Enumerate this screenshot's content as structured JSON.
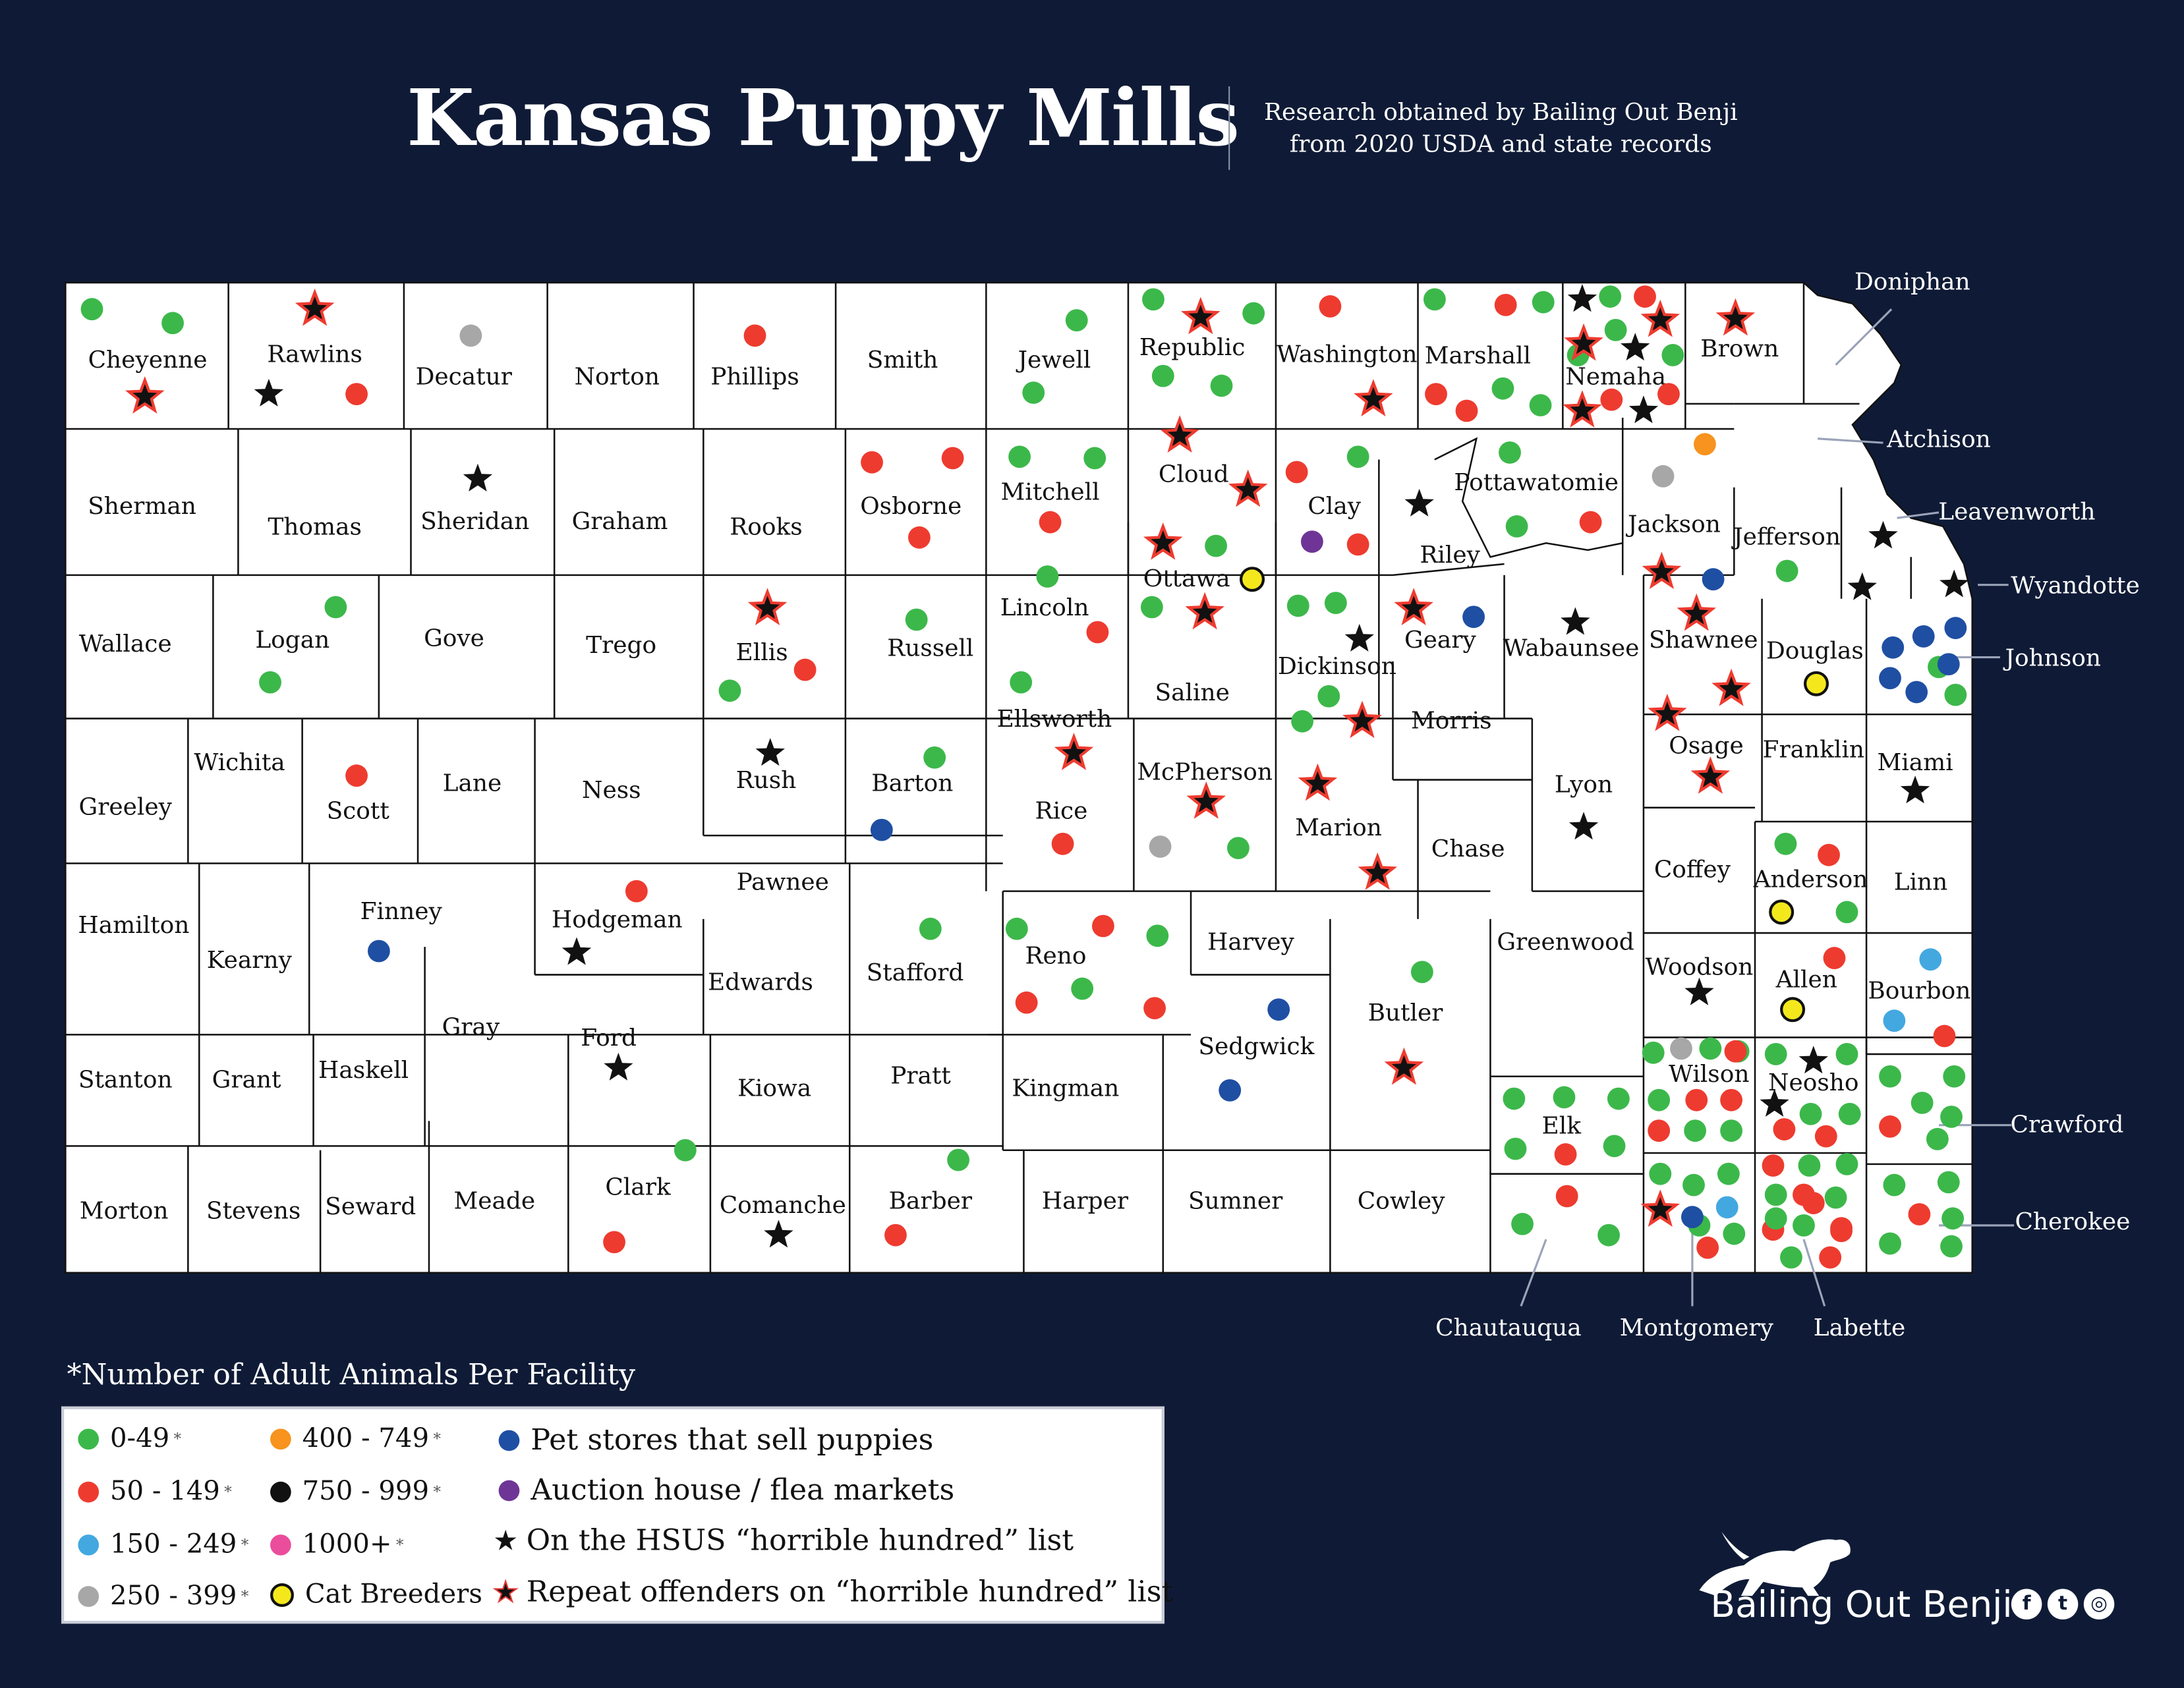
{
  "title": "Kansas Puppy Mills",
  "research_line1": "Research obtained by Bailing Out Benji",
  "research_line2": "from 2020 USDA and state records",
  "legend_title": "Number of Adult Animals Per Facility",
  "legend_title_mark": "*",
  "legend": {
    "size_0_49": "0-49",
    "size_50_149": "50 - 149",
    "size_150_249": "150 - 249",
    "size_250_399": "250 - 399",
    "size_400_749": "400 - 749",
    "size_750_999": "750 - 999",
    "size_1000": "1000+",
    "cat_breeders": "Cat Breeders",
    "pet_stores": "Pet stores that sell puppies",
    "auction": "Auction house / flea markets",
    "hsus": "On the HSUS “horrible hundred” list",
    "repeat": "Repeat offenders on “horrible hundred” list",
    "asterisk": "*"
  },
  "colors": {
    "background": "#0f1b36",
    "green": "#3cb84a",
    "red": "#ee3b2f",
    "light_blue": "#43a8e0",
    "gray": "#a7a7a7",
    "orange": "#f7931e",
    "black": "#111111",
    "pink": "#ea4d9b",
    "yellow": "#f4e81d",
    "navy": "#1f4fa3",
    "purple": "#6e3596"
  },
  "brand": "Bailing Out Benji",
  "social_icons": [
    "facebook-icon",
    "twitter-icon",
    "instagram-icon"
  ],
  "counties": [
    "Cheyenne",
    "Rawlins",
    "Decatur",
    "Norton",
    "Phillips",
    "Smith",
    "Jewell",
    "Republic",
    "Washington",
    "Marshall",
    "Nemaha",
    "Brown",
    "Sherman",
    "Thomas",
    "Sheridan",
    "Graham",
    "Rooks",
    "Osborne",
    "Mitchell",
    "Cloud",
    "Clay",
    "Riley",
    "Pottawatomie",
    "Jackson",
    "Jefferson",
    "Wallace",
    "Logan",
    "Gove",
    "Trego",
    "Ellis",
    "Russell",
    "Lincoln",
    "Ottawa",
    "Dickinson",
    "Geary",
    "Wabaunsee",
    "Shawnee",
    "Douglas",
    "Ellsworth",
    "Saline",
    "Morris",
    "Greeley",
    "Wichita",
    "Scott",
    "Lane",
    "Ness",
    "Rush",
    "Barton",
    "Rice",
    "McPherson",
    "Marion",
    "Chase",
    "Lyon",
    "Osage",
    "Franklin",
    "Miami",
    "Hamilton",
    "Kearny",
    "Finney",
    "Hodgeman",
    "Pawnee",
    "Edwards",
    "Stafford",
    "Reno",
    "Harvey",
    "Coffey",
    "Anderson",
    "Linn",
    "Gray",
    "Ford",
    "Greenwood",
    "Woodson",
    "Allen",
    "Bourbon",
    "Sedgwick",
    "Butler",
    "Stanton",
    "Grant",
    "Haskell",
    "Kiowa",
    "Pratt",
    "Kingman",
    "Wilson",
    "Neosho",
    "Crawford",
    "Morton",
    "Stevens",
    "Seward",
    "Meade",
    "Clark",
    "Comanche",
    "Barber",
    "Harper",
    "Sumner",
    "Cowley",
    "Elk",
    "Chautauqua",
    "Montgomery",
    "Labette",
    "Cherokee",
    "Doniphan",
    "Atchison",
    "Leavenworth",
    "Wyandotte",
    "Johnson"
  ],
  "markers": {
    "Cheyenne": [
      "green",
      "green",
      "repeat"
    ],
    "Rawlins": [
      "repeat",
      "hsus",
      "red"
    ],
    "Decatur": [
      "gray"
    ],
    "Phillips": [
      "red"
    ],
    "Jewell": [
      "green",
      "green"
    ],
    "Republic": [
      "green",
      "repeat",
      "green",
      "green",
      "green"
    ],
    "Washington": [
      "red",
      "repeat"
    ],
    "Marshall": [
      "green",
      "red",
      "green",
      "red",
      "green",
      "red",
      "green",
      "green"
    ],
    "Nemaha": [
      "hsus",
      "green",
      "red",
      "repeat",
      "repeat",
      "green",
      "hsus",
      "green",
      "repeat",
      "red",
      "hsus",
      "red"
    ],
    "Brown": [
      "repeat"
    ],
    "Sheridan": [
      "hsus"
    ],
    "Osborne": [
      "red",
      "red",
      "red"
    ],
    "Mitchell": [
      "green",
      "green",
      "red"
    ],
    "Cloud": [
      "repeat",
      "repeat"
    ],
    "Clay": [
      "red",
      "green",
      "purple",
      "red"
    ],
    "Riley": [
      "hsus"
    ],
    "Pottawatomie": [
      "green",
      "green",
      "red"
    ],
    "Jackson": [
      "orange",
      "gray",
      "repeat",
      "navy"
    ],
    "Jefferson": [
      "green"
    ],
    "Logan": [
      "green",
      "green"
    ],
    "Ellis": [
      "repeat",
      "green",
      "red"
    ],
    "Russell": [
      "green"
    ],
    "Lincoln": [
      "green",
      "red"
    ],
    "Ottawa": [
      "repeat",
      "green",
      "yellow",
      "green",
      "repeat"
    ],
    "Dickinson": [
      "green",
      "green",
      "hsus",
      "green",
      "green",
      "repeat"
    ],
    "Geary": [
      "repeat",
      "navy"
    ],
    "Wabaunsee": [
      "hsus"
    ],
    "Shawnee": [
      "repeat"
    ],
    "Douglas": [
      "yellow"
    ],
    "Ellsworth": [
      "green",
      "repeat"
    ],
    "Scott": [
      "red"
    ],
    "Rush": [
      "hsus"
    ],
    "Barton": [
      "green",
      "navy"
    ],
    "Rice": [
      "red"
    ],
    "McPherson": [
      "repeat",
      "gray",
      "green"
    ],
    "Marion": [
      "repeat",
      "repeat"
    ],
    "Lyon": [
      "hsus"
    ],
    "Osage": [
      "repeat",
      "repeat",
      "repeat"
    ],
    "Miami": [
      "hsus"
    ],
    "Finney": [
      "navy"
    ],
    "Hodgeman": [
      "red",
      "hsus"
    ],
    "Stafford": [
      "green"
    ],
    "Reno": [
      "green",
      "red",
      "green",
      "red",
      "green",
      "red"
    ],
    "Anderson": [
      "green",
      "red",
      "yellow",
      "green"
    ],
    "Ford": [
      "hsus"
    ],
    "Woodson": [
      "hsus"
    ],
    "Allen": [
      "red",
      "yellow"
    ],
    "Bourbon": [
      "light_blue",
      "light_blue",
      "red"
    ],
    "Sedgwick": [
      "navy",
      "navy"
    ],
    "Butler": [
      "green",
      "repeat"
    ],
    "Wilson": [
      "green",
      "gray",
      "green",
      "green",
      "red",
      "green",
      "red",
      "red",
      "green",
      "green",
      "red"
    ],
    "Neosho": [
      "green",
      "hsus",
      "green",
      "hsus",
      "green",
      "red",
      "green",
      "red"
    ],
    "Crawford": [
      "green",
      "green",
      "green",
      "red",
      "green",
      "green"
    ],
    "Clark": [
      "green",
      "red"
    ],
    "Comanche": [
      "hsus"
    ],
    "Barber": [
      "green",
      "red"
    ],
    "Elk": [
      "green",
      "green",
      "green",
      "green",
      "red",
      "green"
    ],
    "Chautauqua": [
      "red",
      "green",
      "green"
    ],
    "Montgomery": [
      "green",
      "green",
      "green",
      "repeat",
      "light_blue",
      "green",
      "navy",
      "red",
      "green"
    ],
    "Labette": [
      "red",
      "green",
      "green",
      "green",
      "red",
      "green",
      "red",
      "green",
      "red",
      "green",
      "red",
      "red",
      "green",
      "red"
    ],
    "Cherokee": [
      "green",
      "green",
      "red",
      "green",
      "green",
      "green"
    ],
    "Atchison": [],
    "Leavenworth": [
      "hsus",
      "hsus"
    ],
    "Wyandotte": [
      "hsus"
    ],
    "Johnson": [
      "navy",
      "navy",
      "navy",
      "navy",
      "green",
      "navy",
      "green",
      "navy"
    ]
  }
}
